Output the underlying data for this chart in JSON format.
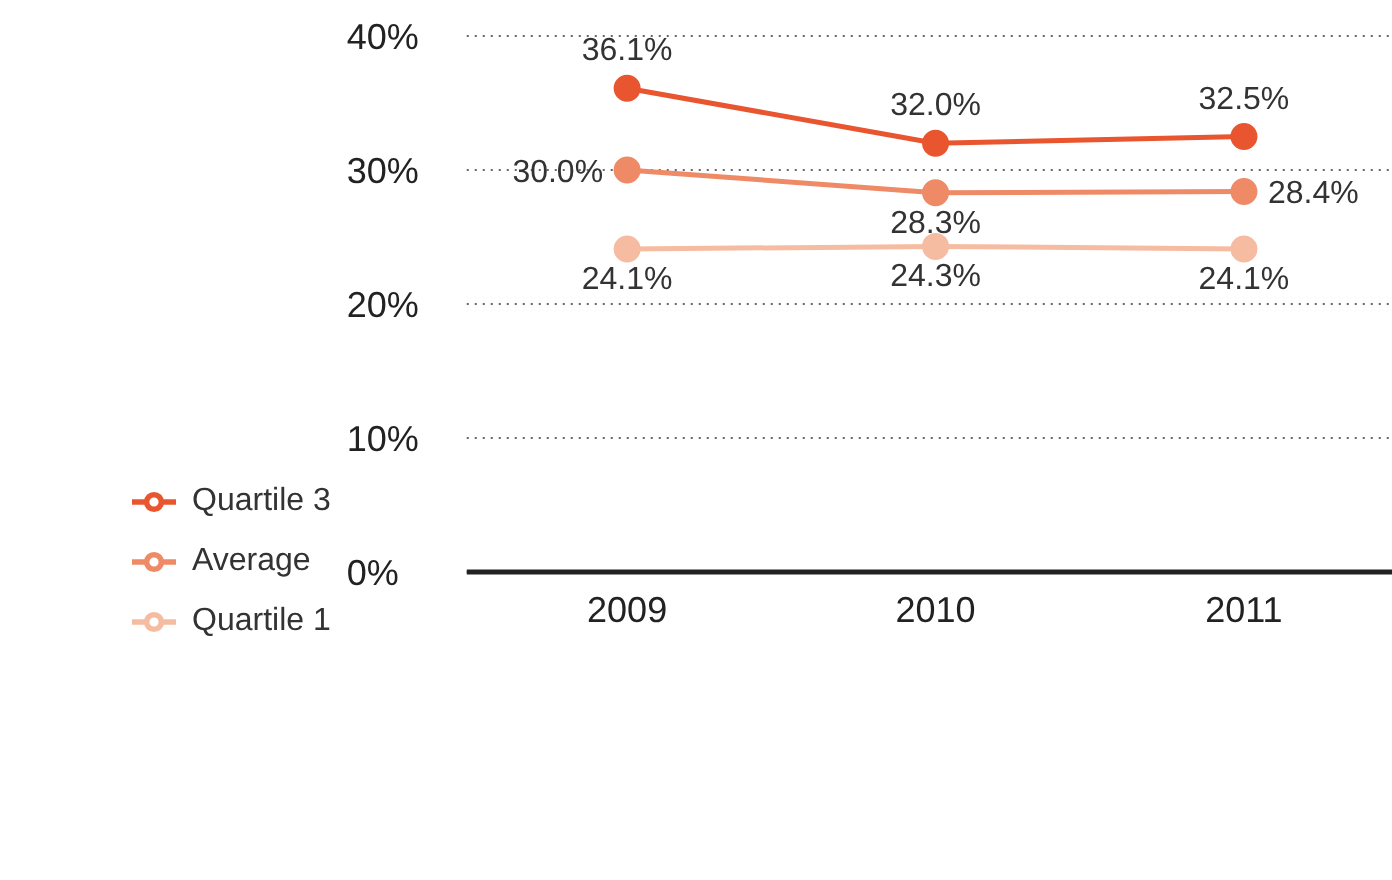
{
  "chart_data": {
    "type": "line",
    "categories": [
      "2009",
      "2010",
      "2011"
    ],
    "series": [
      {
        "name": "Quartile 3",
        "color": "#e8552f",
        "values": [
          36.1,
          32.0,
          32.5
        ],
        "value_labels": [
          "36.1%",
          "32.0%",
          "32.5%"
        ]
      },
      {
        "name": "Average",
        "color": "#ee8a66",
        "values": [
          30.0,
          28.3,
          28.4
        ],
        "value_labels": [
          "30.0%",
          "28.3%",
          "28.4%"
        ]
      },
      {
        "name": "Quartile 1",
        "color": "#f6bca2",
        "values": [
          24.1,
          24.3,
          24.1
        ],
        "value_labels": [
          "24.1%",
          "24.3%",
          "24.1%"
        ]
      }
    ],
    "ylim": [
      0,
      40
    ],
    "yticks": [
      {
        "value": 0,
        "label": "0%"
      },
      {
        "value": 10,
        "label": "10%"
      },
      {
        "value": 20,
        "label": "20%"
      },
      {
        "value": 30,
        "label": "30%"
      },
      {
        "value": 40,
        "label": "40%"
      }
    ],
    "grid": "y",
    "legend": "bottom left",
    "marker": "circle",
    "line_style": "solid"
  }
}
